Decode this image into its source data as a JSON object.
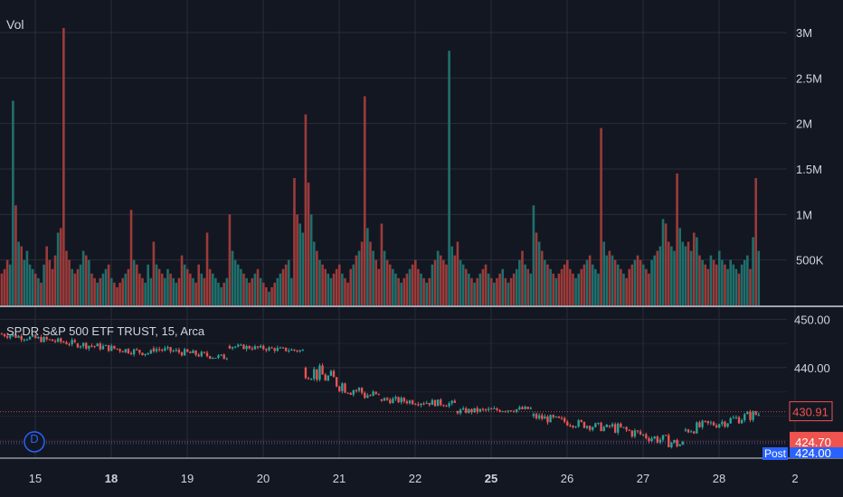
{
  "colors": {
    "background": "#131722",
    "grid": "#2a2e39",
    "separator": "#d1d4dc",
    "axis_text": "#d1d4dc",
    "up": "#26a69a",
    "down": "#ef5350",
    "volume_up": "#1f6f6b",
    "volume_down": "#9b3b3a",
    "post_badge": "#2962ff",
    "dividend_marker": "#2962ff"
  },
  "volume_pane": {
    "label": "Vol",
    "y_ticks": [
      "3M",
      "2.5M",
      "2M",
      "1.5M",
      "1M",
      "500K"
    ],
    "y_tick_values": [
      3000000,
      2500000,
      2000000,
      1500000,
      1000000,
      500000
    ],
    "ylim": [
      0,
      3100000
    ]
  },
  "price_pane": {
    "title": "SPDR S&P 500 ETF TRUST, 15, Arca",
    "y_ticks": [
      "450.00",
      "440.00"
    ],
    "y_tick_values": [
      450,
      440
    ],
    "ylim": [
      421.5,
      452.5
    ],
    "last_price_label": "430.91",
    "post_price_label": "424.70",
    "post_badge_text": "Post",
    "bottom_label": "424.00",
    "dividend_marker_text": "D",
    "last_price_value": 430.91,
    "post_price_value": 424.7
  },
  "x_axis": {
    "ticks": [
      {
        "label": "15",
        "bold": false
      },
      {
        "label": "18",
        "bold": true
      },
      {
        "label": "19",
        "bold": false
      },
      {
        "label": "20",
        "bold": false
      },
      {
        "label": "21",
        "bold": false
      },
      {
        "label": "22",
        "bold": false
      },
      {
        "label": "25",
        "bold": true
      },
      {
        "label": "26",
        "bold": false
      },
      {
        "label": "27",
        "bold": false
      },
      {
        "label": "28",
        "bold": false
      },
      {
        "label": "2",
        "bold": false
      }
    ]
  },
  "chart_data": {
    "type": "candlestick",
    "title": "SPDR S&P 500 ETF TRUST, 15, Arca",
    "interval": "15",
    "exchange": "Arca",
    "volume_ylim": [
      0,
      3100000
    ],
    "price_ylim": [
      421.5,
      452.5
    ],
    "sessions": [
      {
        "label": "15",
        "open": 447.0,
        "close": 445.0,
        "min": 444.4,
        "max": 447.4,
        "volumes": [
          350000,
          400000,
          500000,
          450000,
          2250000,
          1100000,
          700000,
          650000,
          500000,
          600000,
          450000,
          400000,
          350000,
          300000,
          250000,
          450000,
          650000,
          500000,
          400000,
          550000,
          800000,
          850000,
          3050000,
          600000,
          500000,
          400000,
          350000
        ]
      },
      {
        "label": "18",
        "open": 445.0,
        "close": 443.0,
        "min": 442.3,
        "max": 445.6,
        "volumes": [
          400000,
          450000,
          600000,
          550000,
          500000,
          350000,
          300000,
          250000,
          300000,
          350000,
          400000,
          450000,
          300000,
          250000,
          200000,
          250000,
          300000,
          350000,
          400000,
          1050000,
          500000,
          450000,
          350000,
          300000,
          250000,
          450000,
          300000
        ]
      },
      {
        "label": "19",
        "open": 444.0,
        "close": 442.0,
        "min": 441.8,
        "max": 445.0,
        "volumes": [
          700000,
          450000,
          400000,
          350000,
          300000,
          400000,
          350000,
          300000,
          250000,
          300000,
          550000,
          450000,
          400000,
          350000,
          300000,
          250000,
          450000,
          350000,
          300000,
          800000,
          400000,
          350000,
          300000,
          250000,
          200000,
          250000,
          300000
        ]
      },
      {
        "label": "20",
        "open": 444.5,
        "close": 443.5,
        "min": 442.8,
        "max": 445.0,
        "volumes": [
          1000000,
          600000,
          500000,
          450000,
          400000,
          350000,
          300000,
          250000,
          300000,
          350000,
          400000,
          300000,
          250000,
          200000,
          150000,
          200000,
          250000,
          300000,
          350000,
          400000,
          450000,
          500000,
          300000,
          1400000,
          1000000,
          900000,
          800000
        ]
      },
      {
        "label": "21",
        "open": 440.0,
        "close": 433.5,
        "min": 432.5,
        "max": 441.0,
        "volumes": [
          2100000,
          1350000,
          1000000,
          700000,
          600000,
          500000,
          450000,
          400000,
          350000,
          300000,
          350000,
          400000,
          450000,
          350000,
          300000,
          250000,
          400000,
          450000,
          550000,
          600000,
          700000,
          2300000,
          850000,
          700000,
          600000,
          500000,
          400000
        ]
      },
      {
        "label": "22",
        "open": 433.5,
        "close": 432.5,
        "min": 431.4,
        "max": 434.5,
        "volumes": [
          900000,
          600000,
          500000,
          450000,
          400000,
          350000,
          300000,
          250000,
          300000,
          350000,
          400000,
          450000,
          500000,
          400000,
          350000,
          300000,
          250000,
          300000,
          450000,
          500000,
          600000,
          550000,
          500000,
          450000,
          2800000,
          650000,
          550000
        ]
      },
      {
        "label": "25",
        "open": 431.0,
        "close": 431.5,
        "min": 429.6,
        "max": 432.2,
        "volumes": [
          700000,
          500000,
          450000,
          400000,
          350000,
          300000,
          250000,
          300000,
          350000,
          400000,
          450000,
          350000,
          300000,
          250000,
          300000,
          350000,
          400000,
          300000,
          250000,
          300000,
          350000,
          400000,
          500000,
          600000,
          450000,
          400000,
          350000
        ]
      },
      {
        "label": "26",
        "open": 430.0,
        "close": 427.5,
        "min": 426.8,
        "max": 430.8,
        "volumes": [
          1100000,
          800000,
          700000,
          600000,
          500000,
          450000,
          400000,
          350000,
          300000,
          350000,
          400000,
          450000,
          500000,
          400000,
          350000,
          300000,
          350000,
          400000,
          450000,
          500000,
          550000,
          450000,
          400000,
          350000,
          1950000,
          700000,
          550000
        ]
      },
      {
        "label": "27",
        "open": 428.0,
        "close": 424.0,
        "min": 423.3,
        "max": 428.7,
        "volumes": [
          600000,
          550000,
          500000,
          450000,
          400000,
          350000,
          300000,
          400000,
          450000,
          500000,
          550000,
          500000,
          450000,
          400000,
          350000,
          500000,
          550000,
          600000,
          650000,
          950000,
          900000,
          700000,
          650000,
          600000,
          1450000,
          850000,
          700000
        ]
      },
      {
        "label": "28",
        "open": 427.0,
        "close": 430.5,
        "min": 426.2,
        "max": 431.3,
        "volumes": [
          650000,
          700000,
          600000,
          800000,
          750000,
          550000,
          500000,
          450000,
          400000,
          550000,
          500000,
          450000,
          600000,
          500000,
          450000,
          400000,
          500000,
          450000,
          400000,
          350000,
          450000,
          500000,
          550000,
          400000,
          750000,
          1400000,
          600000
        ]
      }
    ]
  }
}
